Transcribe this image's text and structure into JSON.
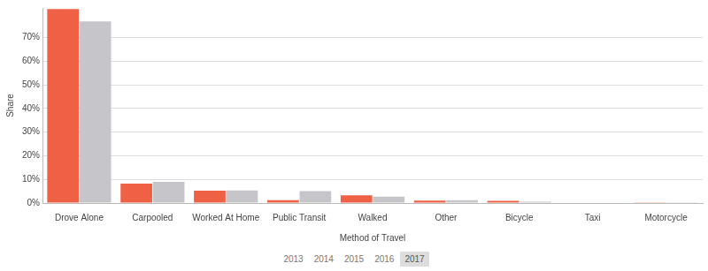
{
  "chart_data": {
    "type": "bar",
    "x_label": "Method of Travel",
    "y_label": "Share",
    "categories": [
      "Drove Alone",
      "Carpooled",
      "Worked At Home",
      "Public Transit",
      "Walked",
      "Other",
      "Bicycle",
      "Taxi",
      "Motorcycle"
    ],
    "series": [
      {
        "color": "#ef6145",
        "values": [
          82.0,
          8.2,
          5.2,
          1.2,
          3.3,
          1.0,
          0.9,
          0.0,
          0.1
        ]
      },
      {
        "color": "#c6c6ca",
        "values": [
          76.8,
          9.0,
          5.3,
          5.0,
          2.7,
          1.2,
          0.6,
          0.2,
          0.1
        ]
      }
    ],
    "ylim": [
      0,
      82.5
    ],
    "yticks": [
      {
        "value": 0,
        "label": "0%"
      },
      {
        "value": 10,
        "label": "10%"
      },
      {
        "value": 20,
        "label": "20%"
      },
      {
        "value": 30,
        "label": "30%"
      },
      {
        "value": 40,
        "label": "40%"
      },
      {
        "value": 50,
        "label": "50%"
      },
      {
        "value": 60,
        "label": "60%"
      },
      {
        "value": 70,
        "label": "70%"
      }
    ],
    "grid": true,
    "year_selector": {
      "options": [
        "2013",
        "2014",
        "2015",
        "2016",
        "2017"
      ],
      "selected": "2017"
    }
  }
}
